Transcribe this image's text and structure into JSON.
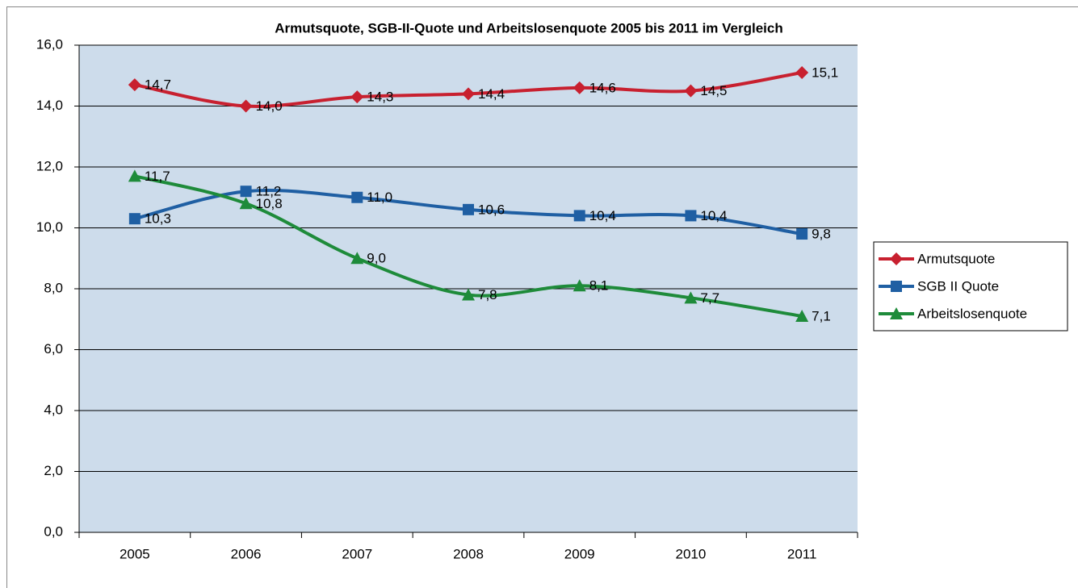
{
  "chart_data": {
    "type": "line",
    "title": "Armutsquote, SGB-II-Quote und Arbeitslosenquote 2005 bis 2011 im Vergleich",
    "categories": [
      "2005",
      "2006",
      "2007",
      "2008",
      "2009",
      "2010",
      "2011"
    ],
    "series": [
      {
        "name": "Armutsquote",
        "color": "#c8202f",
        "marker": "diamond",
        "values": [
          14.7,
          14.0,
          14.3,
          14.4,
          14.6,
          14.5,
          15.1
        ],
        "value_labels": [
          "14,7",
          "14,0",
          "14,3",
          "14,4",
          "14,6",
          "14,5",
          "15,1"
        ]
      },
      {
        "name": "SGB II Quote",
        "color": "#1f5fa3",
        "marker": "square",
        "values": [
          10.3,
          11.2,
          11.0,
          10.6,
          10.4,
          10.4,
          9.8
        ],
        "value_labels": [
          "10,3",
          "11,2",
          "11,0",
          "10,6",
          "10,4",
          "10,4",
          "9,8"
        ]
      },
      {
        "name": "Arbeitslosenquote",
        "color": "#1e8b3a",
        "marker": "triangle",
        "values": [
          11.7,
          10.8,
          9.0,
          7.8,
          8.1,
          7.7,
          7.1
        ],
        "value_labels": [
          "11,7",
          "10,8",
          "9,0",
          "7,8",
          "8,1",
          "7,7",
          "7,1"
        ]
      }
    ],
    "ylim": [
      0,
      16
    ],
    "yticks": [
      {
        "value": 0,
        "label": "0,0"
      },
      {
        "value": 2,
        "label": "2,0"
      },
      {
        "value": 4,
        "label": "4,0"
      },
      {
        "value": 6,
        "label": "6,0"
      },
      {
        "value": 8,
        "label": "8,0"
      },
      {
        "value": 10,
        "label": "10,0"
      },
      {
        "value": 12,
        "label": "12,0"
      },
      {
        "value": 14,
        "label": "14,0"
      },
      {
        "value": 16,
        "label": "16,0"
      }
    ],
    "grid": true,
    "legend": "right"
  }
}
